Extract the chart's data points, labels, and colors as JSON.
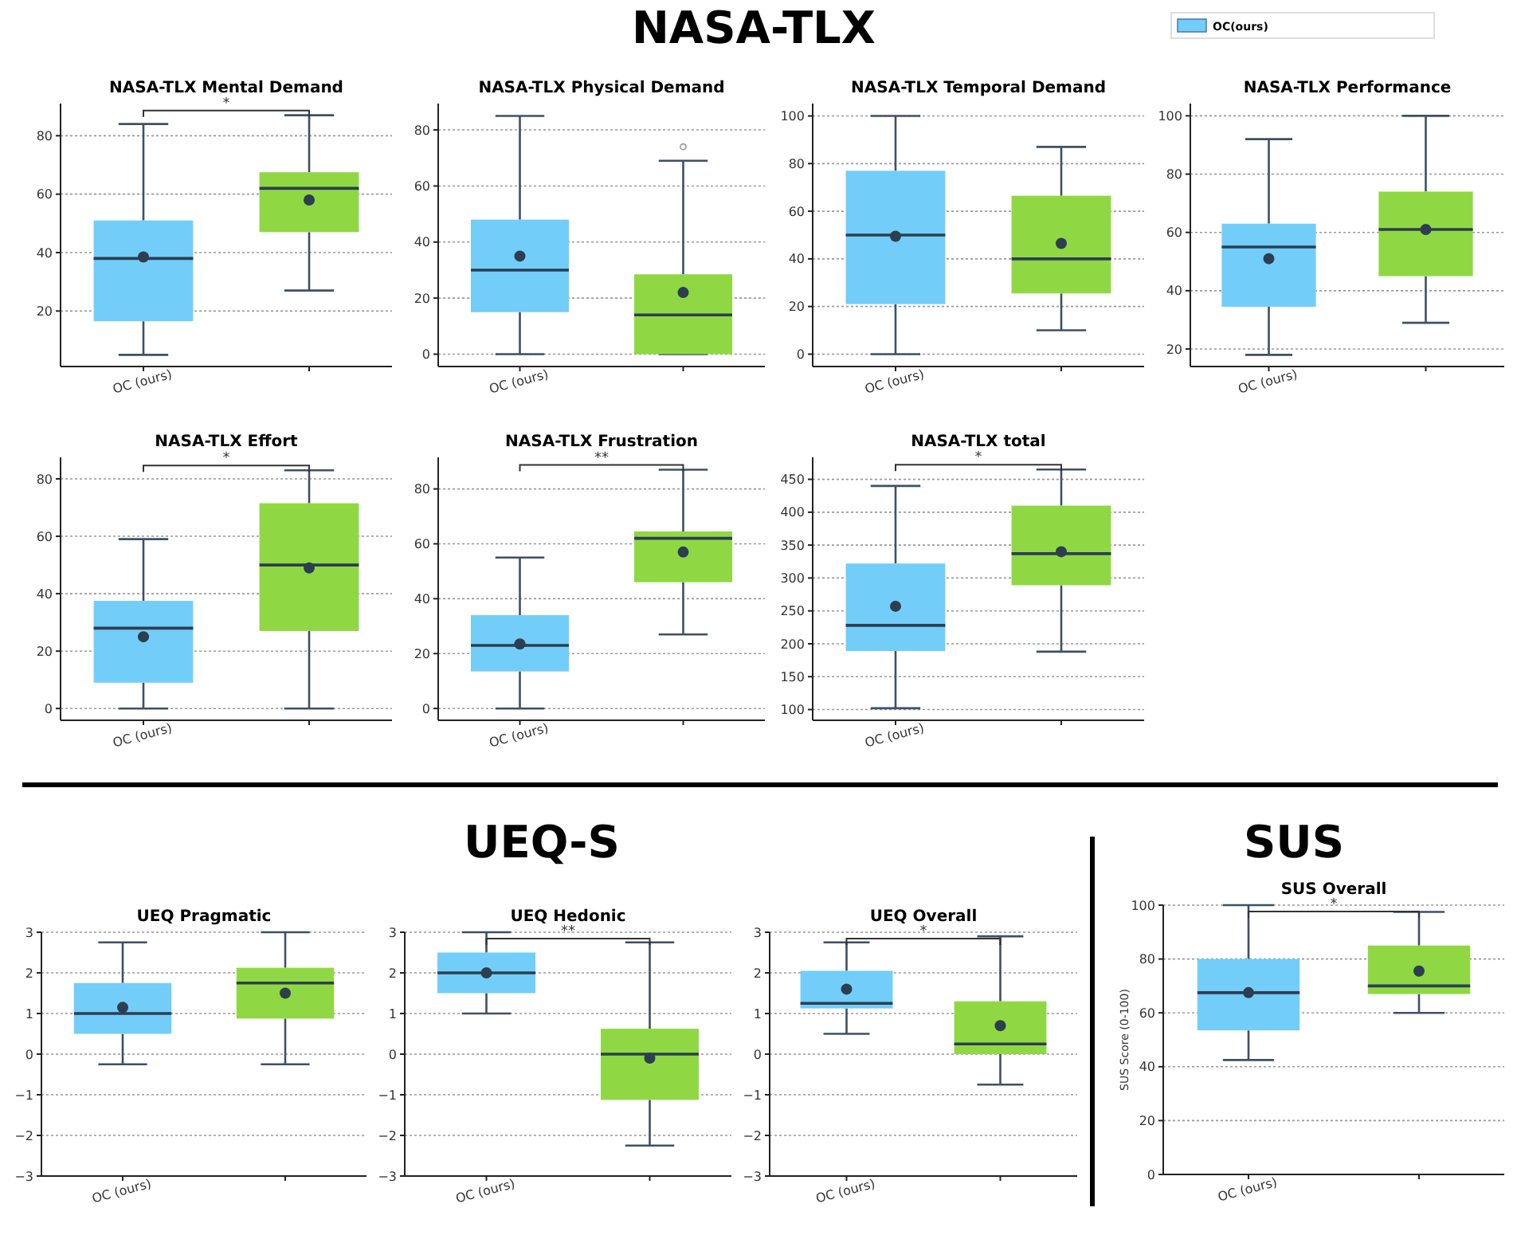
{
  "chart_data": [
    {
      "type": "other",
      "title": "NASA-TLX"
    },
    {
      "type": "box",
      "title": "NASA-TLX Mental Demand",
      "categories": [
        "OC (ours)",
        null
      ],
      "ylim": [
        1,
        91
      ],
      "yticks": [
        20,
        40,
        60,
        80
      ],
      "grid": "y",
      "legend": "top right",
      "annotations": [
        "*"
      ],
      "series": [
        {
          "name": "OC(ours)",
          "color": "#72cdf9",
          "boxes": [
            {
              "low": 5,
              "q1": 16.5,
              "median": 38,
              "q3": 51,
              "high": 84,
              "mean": 38.5
            },
            null
          ]
        },
        {
          "color": "#8fd843",
          "boxes": [
            null,
            {
              "low": 27,
              "q1": 47,
              "median": 62,
              "q3": 67.5,
              "high": 87,
              "mean": 58
            }
          ]
        }
      ]
    },
    {
      "type": "box",
      "title": "NASA-TLX Physical Demand",
      "categories": [
        "OC (ours)",
        null
      ],
      "ylim": [
        -4.4,
        89.4
      ],
      "yticks": [
        0,
        20,
        40,
        60,
        80
      ],
      "grid": "y",
      "series": [
        {
          "color": "#72cdf9",
          "boxes": [
            {
              "low": 0,
              "q1": 15,
              "median": 30,
              "q3": 48,
              "high": 85,
              "mean": 35
            },
            null
          ]
        },
        {
          "color": "#8fd843",
          "boxes": [
            null,
            {
              "low": 0,
              "q1": 0,
              "median": 14,
              "q3": 28.5,
              "high": 69,
              "mean": 22,
              "outliers": [
                74
              ]
            }
          ]
        }
      ]
    },
    {
      "type": "box",
      "title": "NASA-TLX Temporal Demand",
      "categories": [
        "OC (ours)",
        null
      ],
      "ylim": [
        -5.2,
        105.2
      ],
      "yticks": [
        0,
        20,
        40,
        60,
        80,
        100
      ],
      "grid": "y",
      "series": [
        {
          "color": "#72cdf9",
          "boxes": [
            {
              "low": 0,
              "q1": 21,
              "median": 50,
              "q3": 77,
              "high": 100,
              "mean": 49.5
            },
            null
          ]
        },
        {
          "color": "#8fd843",
          "boxes": [
            null,
            {
              "low": 10,
              "q1": 25.5,
              "median": 40,
              "q3": 66.5,
              "high": 87,
              "mean": 46.5
            }
          ]
        }
      ]
    },
    {
      "type": "box",
      "title": "NASA-TLX Performance",
      "categories": [
        "OC (ours)",
        null
      ],
      "ylim": [
        14,
        104.2
      ],
      "yticks": [
        20,
        40,
        60,
        80,
        100
      ],
      "grid": "y",
      "series": [
        {
          "color": "#72cdf9",
          "boxes": [
            {
              "low": 18,
              "q1": 34.5,
              "median": 55,
              "q3": 63,
              "high": 92,
              "mean": 51
            },
            null
          ]
        },
        {
          "color": "#8fd843",
          "boxes": [
            null,
            {
              "low": 29,
              "q1": 45,
              "median": 61,
              "q3": 74,
              "high": 100,
              "mean": 61
            }
          ]
        }
      ]
    },
    {
      "type": "box",
      "title": "NASA-TLX Effort",
      "categories": [
        "OC (ours)",
        null
      ],
      "ylim": [
        -4.1,
        87.5
      ],
      "yticks": [
        0,
        20,
        40,
        60,
        80
      ],
      "grid": "y",
      "annotations": [
        "*"
      ],
      "series": [
        {
          "color": "#72cdf9",
          "boxes": [
            {
              "low": 0,
              "q1": 9,
              "median": 28,
              "q3": 37.5,
              "high": 59,
              "mean": 25
            },
            null
          ]
        },
        {
          "color": "#8fd843",
          "boxes": [
            null,
            {
              "low": 0,
              "q1": 27,
              "median": 50,
              "q3": 71.5,
              "high": 83,
              "mean": 49
            }
          ]
        }
      ]
    },
    {
      "type": "box",
      "title": "NASA-TLX Frustration",
      "categories": [
        "OC (ours)",
        null
      ],
      "ylim": [
        -4.3,
        91.5
      ],
      "yticks": [
        0,
        20,
        40,
        60,
        80
      ],
      "grid": "y",
      "annotations": [
        "**"
      ],
      "series": [
        {
          "color": "#72cdf9",
          "boxes": [
            {
              "low": 0,
              "q1": 13.5,
              "median": 23,
              "q3": 34,
              "high": 55,
              "mean": 23.5
            },
            null
          ]
        },
        {
          "color": "#8fd843",
          "boxes": [
            null,
            {
              "low": 27,
              "q1": 46,
              "median": 62,
              "q3": 64.5,
              "high": 87,
              "mean": 57
            }
          ]
        }
      ]
    },
    {
      "type": "box",
      "title": "NASA-TLX total",
      "categories": [
        "OC (ours)",
        null
      ],
      "ylim": [
        83.7,
        483.4
      ],
      "yticks": [
        100,
        150,
        200,
        250,
        300,
        350,
        400,
        450
      ],
      "grid": "y",
      "annotations": [
        "*"
      ],
      "series": [
        {
          "color": "#72cdf9",
          "boxes": [
            {
              "low": 102,
              "q1": 189,
              "median": 228,
              "q3": 322,
              "high": 440,
              "mean": 257
            },
            null
          ]
        },
        {
          "color": "#8fd843",
          "boxes": [
            null,
            {
              "low": 188,
              "q1": 289,
              "median": 337,
              "q3": 410,
              "high": 465,
              "mean": 340
            }
          ]
        }
      ]
    },
    {
      "type": "other",
      "title": "UEQ-S"
    },
    {
      "type": "box",
      "title": "UEQ Pragmatic",
      "categories": [
        "OC (ours)",
        null
      ],
      "ylim": [
        -3,
        3
      ],
      "yticks": [
        {
          "value": -3,
          "label": "−3"
        },
        {
          "value": -2,
          "label": "−2"
        },
        {
          "value": -1,
          "label": "−1"
        },
        0,
        1,
        2,
        3
      ],
      "grid": "y",
      "series": [
        {
          "color": "#72cdf9",
          "boxes": [
            {
              "low": -0.25,
              "q1": 0.5,
              "median": 1,
              "q3": 1.75,
              "high": 2.75,
              "mean": 1.15
            },
            null
          ]
        },
        {
          "color": "#8fd843",
          "boxes": [
            null,
            {
              "low": -0.25,
              "q1": 0.875,
              "median": 1.75,
              "q3": 2.125,
              "high": 3,
              "mean": 1.5
            }
          ]
        }
      ]
    },
    {
      "type": "box",
      "title": "UEQ Hedonic",
      "categories": [
        "OC (ours)",
        null
      ],
      "ylim": [
        -3,
        3
      ],
      "yticks": [
        {
          "value": -3,
          "label": "−3"
        },
        {
          "value": -2,
          "label": "−2"
        },
        {
          "value": -1,
          "label": "−1"
        },
        0,
        1,
        2,
        3
      ],
      "grid": "y",
      "annotations": [
        "**"
      ],
      "series": [
        {
          "color": "#72cdf9",
          "boxes": [
            {
              "low": 1,
              "q1": 1.5,
              "median": 2,
              "q3": 2.5,
              "high": 3,
              "mean": 2
            },
            null
          ]
        },
        {
          "color": "#8fd843",
          "boxes": [
            null,
            {
              "low": -2.25,
              "q1": -1.125,
              "median": 0,
              "q3": 0.625,
              "high": 2.75,
              "mean": -0.1
            }
          ]
        }
      ]
    },
    {
      "type": "box",
      "title": "UEQ Overall",
      "categories": [
        "OC (ours)",
        null
      ],
      "ylim": [
        -3,
        3
      ],
      "yticks": [
        {
          "value": -3,
          "label": "−3"
        },
        {
          "value": -2,
          "label": "−2"
        },
        {
          "value": -1,
          "label": "−1"
        },
        0,
        1,
        2,
        3
      ],
      "grid": "y",
      "annotations": [
        "*"
      ],
      "series": [
        {
          "color": "#72cdf9",
          "boxes": [
            {
              "low": 0.5,
              "q1": 1.125,
              "median": 1.25,
              "q3": 2.05,
              "high": 2.75,
              "mean": 1.6
            },
            null
          ]
        },
        {
          "color": "#8fd843",
          "boxes": [
            null,
            {
              "low": -0.75,
              "q1": 0,
              "median": 0.25,
              "q3": 1.3,
              "high": 2.9,
              "mean": 0.7
            }
          ]
        }
      ]
    },
    {
      "type": "other",
      "title": "SUS"
    },
    {
      "type": "box",
      "title": "SUS Overall",
      "ylabel": "SUS Score (0-100)",
      "categories": [
        "OC (ours)",
        null
      ],
      "ylim": [
        0,
        100
      ],
      "yticks": [
        0,
        20,
        40,
        60,
        80,
        100
      ],
      "grid": "y",
      "annotations": [
        "*"
      ],
      "series": [
        {
          "color": "#72cdf9",
          "boxes": [
            {
              "low": 42.5,
              "q1": 53.5,
              "median": 67.5,
              "q3": 80,
              "high": 100,
              "mean": 67.5
            },
            null
          ]
        },
        {
          "color": "#8fd843",
          "boxes": [
            null,
            {
              "low": 60,
              "q1": 67,
              "median": 70,
              "q3": 85,
              "high": 97.5,
              "mean": 75.5
            }
          ]
        }
      ]
    }
  ]
}
